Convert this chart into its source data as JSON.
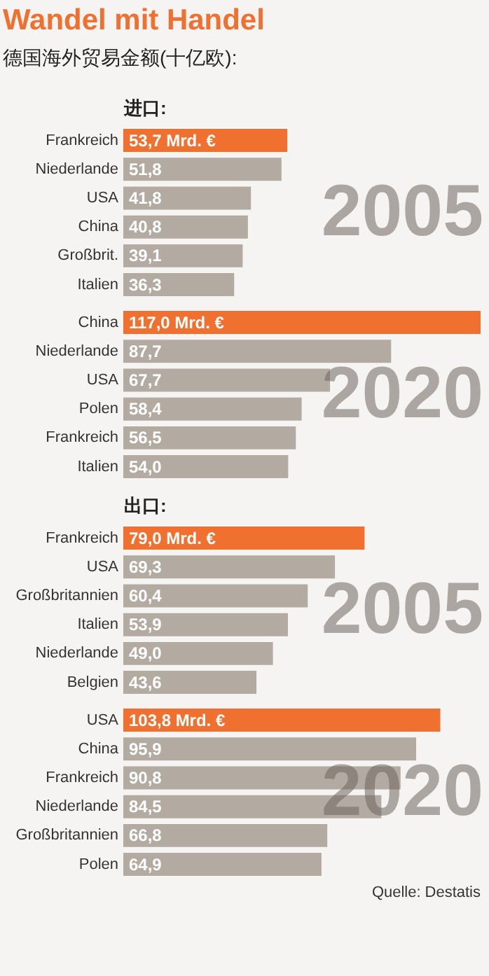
{
  "chart_data": [
    {
      "type": "bar",
      "orientation": "horizontal",
      "title": "Wandel mit Handel",
      "subtitle": "德国海外贸易金额(十亿欧):",
      "ylabel": "进口:",
      "annotations": [
        "2005"
      ],
      "categories": [
        "Frankreich",
        "Niederlande",
        "USA",
        "China",
        "Großbrit.",
        "Italien"
      ],
      "values": [
        53.7,
        51.8,
        41.8,
        40.8,
        39.1,
        36.3
      ],
      "value_labels": [
        "53,7 Mrd. €",
        "51,8",
        "41,8",
        "40,8",
        "39,1",
        "36,3"
      ],
      "colors": [
        "#f07030",
        "#b3aaa2",
        "#b3aaa2",
        "#b3aaa2",
        "#b3aaa2",
        "#b3aaa2"
      ]
    },
    {
      "type": "bar",
      "orientation": "horizontal",
      "annotations": [
        "2020"
      ],
      "categories": [
        "China",
        "Niederlande",
        "USA",
        "Polen",
        "Frankreich",
        "Italien"
      ],
      "values": [
        117.0,
        87.7,
        67.7,
        58.4,
        56.5,
        54.0
      ],
      "value_labels": [
        "117,0 Mrd. €",
        "87,7",
        "67,7",
        "58,4",
        "56,5",
        "54,0"
      ],
      "colors": [
        "#f07030",
        "#b3aaa2",
        "#b3aaa2",
        "#b3aaa2",
        "#b3aaa2",
        "#b3aaa2"
      ]
    },
    {
      "type": "bar",
      "orientation": "horizontal",
      "ylabel": "出口:",
      "annotations": [
        "2005"
      ],
      "categories": [
        "Frankreich",
        "USA",
        "Großbritannien",
        "Italien",
        "Niederlande",
        "Belgien"
      ],
      "values": [
        79.0,
        69.3,
        60.4,
        53.9,
        49.0,
        43.6
      ],
      "value_labels": [
        "79,0 Mrd. €",
        "69,3",
        "60,4",
        "53,9",
        "49,0",
        "43,6"
      ],
      "colors": [
        "#f07030",
        "#b3aaa2",
        "#b3aaa2",
        "#b3aaa2",
        "#b3aaa2",
        "#b3aaa2"
      ]
    },
    {
      "type": "bar",
      "orientation": "horizontal",
      "annotations": [
        "2020",
        "Quelle: Destatis"
      ],
      "categories": [
        "USA",
        "China",
        "Frankreich",
        "Niederlande",
        "Großbritannien",
        "Polen"
      ],
      "values": [
        103.8,
        95.9,
        90.8,
        84.5,
        66.8,
        64.9
      ],
      "value_labels": [
        "103,8 Mrd. €",
        "95,9",
        "90,8",
        "84,5",
        "66,8",
        "64,9"
      ],
      "colors": [
        "#f07030",
        "#b3aaa2",
        "#b3aaa2",
        "#b3aaa2",
        "#b3aaa2",
        "#b3aaa2"
      ]
    }
  ]
}
